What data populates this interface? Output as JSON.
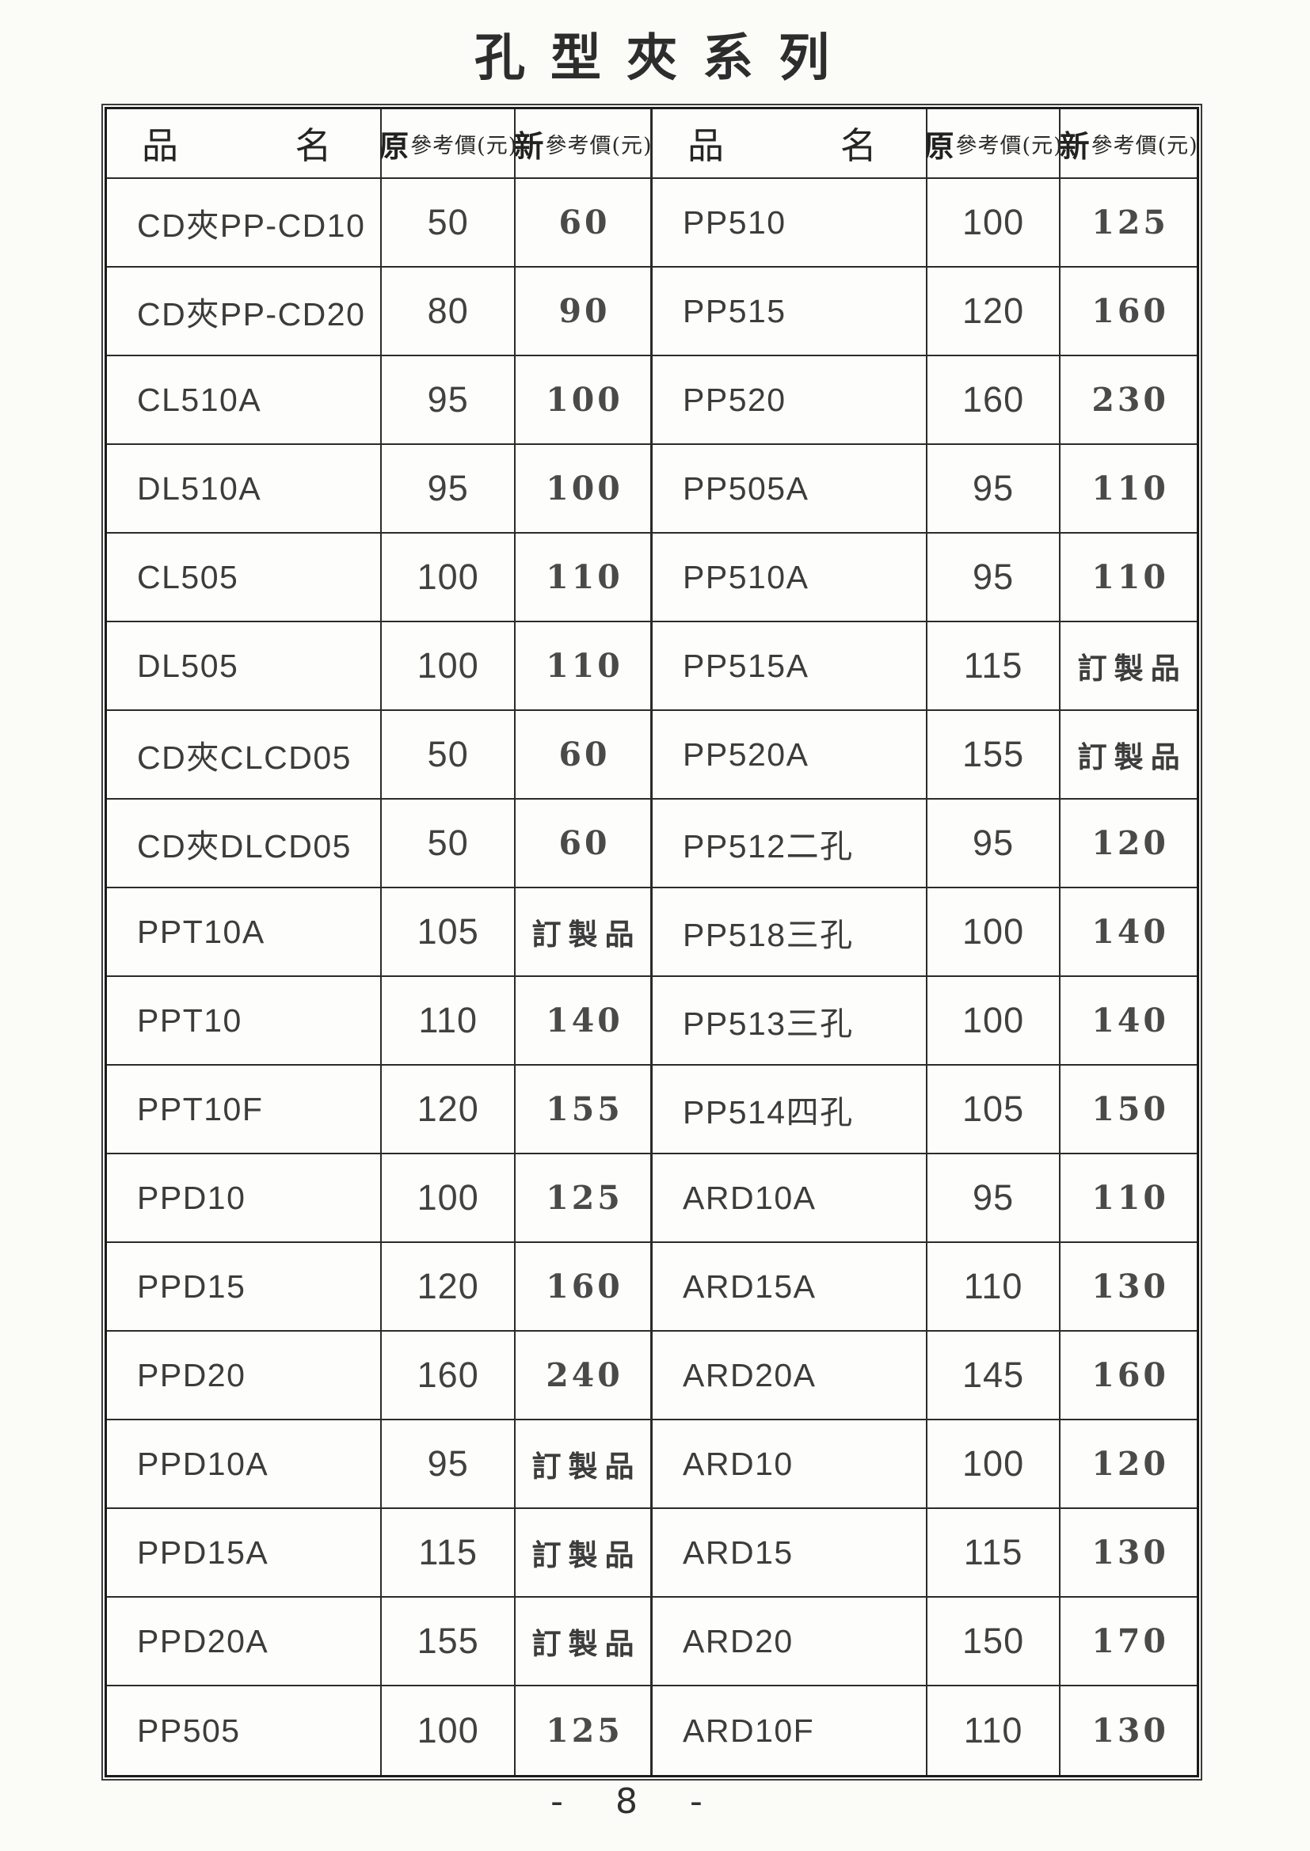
{
  "page": {
    "title": "孔型夾系列",
    "page_number": "-  8  -"
  },
  "table": {
    "header": {
      "name_col_char1": "品",
      "name_col_char2": "名",
      "orig_col_big": "原",
      "orig_col_small": "參考價(元)",
      "new_col_big": "新",
      "new_col_small": "參考價(元)"
    },
    "left_rows": [
      {
        "name": "CD夾PP-CD10",
        "orig": "50",
        "new": "60"
      },
      {
        "name": "CD夾PP-CD20",
        "orig": "80",
        "new": "90"
      },
      {
        "name": "CL510A",
        "orig": "95",
        "new": "100"
      },
      {
        "name": "DL510A",
        "orig": "95",
        "new": "100"
      },
      {
        "name": "CL505",
        "orig": "100",
        "new": "110"
      },
      {
        "name": "DL505",
        "orig": "100",
        "new": "110"
      },
      {
        "name": "CD夾CLCD05",
        "orig": "50",
        "new": "60"
      },
      {
        "name": "CD夾DLCD05",
        "orig": "50",
        "new": "60"
      },
      {
        "name": "PPT10A",
        "orig": "105",
        "new": "訂製品"
      },
      {
        "name": "PPT10",
        "orig": "110",
        "new": "140"
      },
      {
        "name": "PPT10F",
        "orig": "120",
        "new": "155"
      },
      {
        "name": "PPD10",
        "orig": "100",
        "new": "125"
      },
      {
        "name": "PPD15",
        "orig": "120",
        "new": "160"
      },
      {
        "name": "PPD20",
        "orig": "160",
        "new": "240"
      },
      {
        "name": "PPD10A",
        "orig": "95",
        "new": "訂製品"
      },
      {
        "name": "PPD15A",
        "orig": "115",
        "new": "訂製品"
      },
      {
        "name": "PPD20A",
        "orig": "155",
        "new": "訂製品"
      },
      {
        "name": "PP505",
        "orig": "100",
        "new": "125"
      }
    ],
    "right_rows": [
      {
        "name": "PP510",
        "orig": "100",
        "new": "125"
      },
      {
        "name": "PP515",
        "orig": "120",
        "new": "160"
      },
      {
        "name": "PP520",
        "orig": "160",
        "new": "230"
      },
      {
        "name": "PP505A",
        "orig": "95",
        "new": "110"
      },
      {
        "name": "PP510A",
        "orig": "95",
        "new": "110"
      },
      {
        "name": "PP515A",
        "orig": "115",
        "new": "訂製品"
      },
      {
        "name": "PP520A",
        "orig": "155",
        "new": "訂製品"
      },
      {
        "name": "PP512二孔",
        "orig": "95",
        "new": "120"
      },
      {
        "name": "PP518三孔",
        "orig": "100",
        "new": "140"
      },
      {
        "name": "PP513三孔",
        "orig": "100",
        "new": "140"
      },
      {
        "name": "PP514四孔",
        "orig": "105",
        "new": "150"
      },
      {
        "name": "ARD10A",
        "orig": "95",
        "new": "110"
      },
      {
        "name": "ARD15A",
        "orig": "110",
        "new": "130"
      },
      {
        "name": "ARD20A",
        "orig": "145",
        "new": "160"
      },
      {
        "name": "ARD10",
        "orig": "100",
        "new": "120"
      },
      {
        "name": "ARD15",
        "orig": "115",
        "new": "130"
      },
      {
        "name": "ARD20",
        "orig": "150",
        "new": "170"
      },
      {
        "name": "ARD10F",
        "orig": "110",
        "new": "130"
      }
    ]
  }
}
